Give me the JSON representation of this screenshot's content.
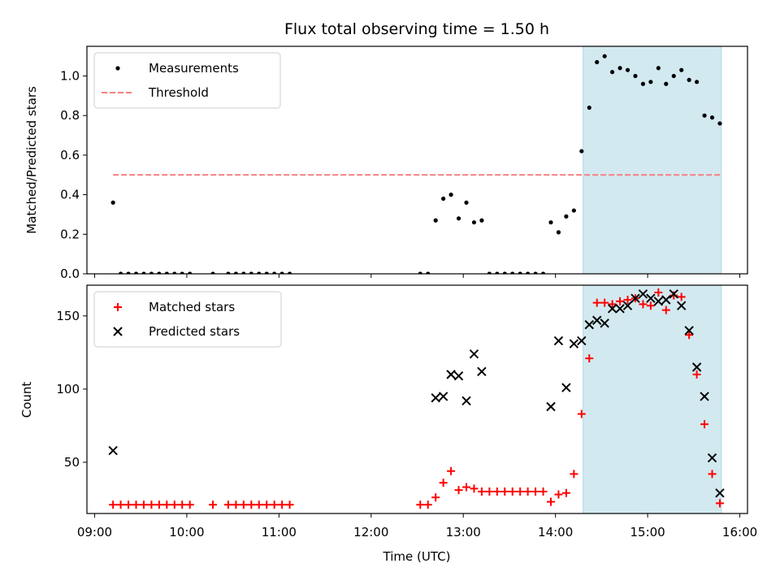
{
  "title": "Flux total observing time = 1.50 h",
  "chart_data": [
    {
      "type": "scatter",
      "ylabel": "Matched/Predicted stars",
      "ylim": [
        0,
        1.15
      ],
      "yticks": [
        0.0,
        0.2,
        0.4,
        0.6,
        0.8,
        1.0
      ],
      "ytick_labels": [
        "0.0",
        "0.2",
        "0.4",
        "0.6",
        "0.8",
        "1.0"
      ],
      "xlim": [
        "08:55",
        "16:05"
      ],
      "legend_position": "top-left",
      "shaded_span": {
        "start": "14:18",
        "end": "15:48",
        "color": "#d3e9f0"
      },
      "threshold": {
        "name": "Threshold",
        "value": 0.5,
        "start": "09:12",
        "end": "15:48",
        "color": "#f47f7f"
      },
      "series": [
        {
          "name": "Measurements",
          "color": "#000000",
          "points": [
            [
              "09:12",
              0.36
            ],
            [
              "09:17",
              0.0
            ],
            [
              "09:22",
              0.0
            ],
            [
              "09:27",
              0.0
            ],
            [
              "09:32",
              0.0
            ],
            [
              "09:37",
              0.0
            ],
            [
              "09:42",
              0.0
            ],
            [
              "09:47",
              0.0
            ],
            [
              "09:52",
              0.0
            ],
            [
              "09:57",
              0.0
            ],
            [
              "10:02",
              0.0
            ],
            [
              "10:17",
              0.0
            ],
            [
              "10:27",
              0.0
            ],
            [
              "10:32",
              0.0
            ],
            [
              "10:37",
              0.0
            ],
            [
              "10:42",
              0.0
            ],
            [
              "10:47",
              0.0
            ],
            [
              "10:52",
              0.0
            ],
            [
              "10:57",
              0.0
            ],
            [
              "11:02",
              0.0
            ],
            [
              "11:07",
              0.0
            ],
            [
              "12:32",
              0.0
            ],
            [
              "12:37",
              0.0
            ],
            [
              "12:42",
              0.27
            ],
            [
              "12:47",
              0.38
            ],
            [
              "12:52",
              0.4
            ],
            [
              "12:57",
              0.28
            ],
            [
              "13:02",
              0.36
            ],
            [
              "13:07",
              0.26
            ],
            [
              "13:12",
              0.27
            ],
            [
              "13:17",
              0.0
            ],
            [
              "13:22",
              0.0
            ],
            [
              "13:27",
              0.0
            ],
            [
              "13:32",
              0.0
            ],
            [
              "13:37",
              0.0
            ],
            [
              "13:42",
              0.0
            ],
            [
              "13:47",
              0.0
            ],
            [
              "13:52",
              0.0
            ],
            [
              "13:57",
              0.26
            ],
            [
              "14:02",
              0.21
            ],
            [
              "14:07",
              0.29
            ],
            [
              "14:12",
              0.32
            ],
            [
              "14:17",
              0.62
            ],
            [
              "14:22",
              0.84
            ],
            [
              "14:27",
              1.07
            ],
            [
              "14:32",
              1.1
            ],
            [
              "14:37",
              1.02
            ],
            [
              "14:42",
              1.04
            ],
            [
              "14:47",
              1.03
            ],
            [
              "14:52",
              1.0
            ],
            [
              "14:57",
              0.96
            ],
            [
              "15:02",
              0.97
            ],
            [
              "15:07",
              1.04
            ],
            [
              "15:12",
              0.96
            ],
            [
              "15:17",
              1.0
            ],
            [
              "15:22",
              1.03
            ],
            [
              "15:27",
              0.98
            ],
            [
              "15:32",
              0.97
            ],
            [
              "15:37",
              0.8
            ],
            [
              "15:42",
              0.79
            ],
            [
              "15:47",
              0.76
            ]
          ]
        }
      ]
    },
    {
      "type": "scatter",
      "xlabel": "Time (UTC)",
      "ylabel": "Count",
      "ylim": [
        15,
        171
      ],
      "yticks": [
        50,
        100,
        150
      ],
      "ytick_labels": [
        "50",
        "100",
        "150"
      ],
      "xlim": [
        "08:55",
        "16:05"
      ],
      "xticks": [
        "09:00",
        "10:00",
        "11:00",
        "12:00",
        "13:00",
        "14:00",
        "15:00",
        "16:00"
      ],
      "xtick_labels": [
        "09:00",
        "10:00",
        "11:00",
        "12:00",
        "13:00",
        "14:00",
        "15:00",
        "16:00"
      ],
      "legend_position": "top-left",
      "shaded_span": {
        "start": "14:18",
        "end": "15:48",
        "color": "#d3e9f0"
      },
      "series": [
        {
          "name": "Matched stars",
          "marker": "plus",
          "color": "#ff0000",
          "points": [
            [
              "09:12",
              21
            ],
            [
              "09:17",
              21
            ],
            [
              "09:22",
              21
            ],
            [
              "09:27",
              21
            ],
            [
              "09:32",
              21
            ],
            [
              "09:37",
              21
            ],
            [
              "09:42",
              21
            ],
            [
              "09:47",
              21
            ],
            [
              "09:52",
              21
            ],
            [
              "09:57",
              21
            ],
            [
              "10:02",
              21
            ],
            [
              "10:17",
              21
            ],
            [
              "10:27",
              21
            ],
            [
              "10:32",
              21
            ],
            [
              "10:37",
              21
            ],
            [
              "10:42",
              21
            ],
            [
              "10:47",
              21
            ],
            [
              "10:52",
              21
            ],
            [
              "10:57",
              21
            ],
            [
              "11:02",
              21
            ],
            [
              "11:07",
              21
            ],
            [
              "12:32",
              21
            ],
            [
              "12:37",
              21
            ],
            [
              "12:42",
              26
            ],
            [
              "12:47",
              36
            ],
            [
              "12:52",
              44
            ],
            [
              "12:57",
              31
            ],
            [
              "13:02",
              33
            ],
            [
              "13:07",
              32
            ],
            [
              "13:12",
              30
            ],
            [
              "13:17",
              30
            ],
            [
              "13:22",
              30
            ],
            [
              "13:27",
              30
            ],
            [
              "13:32",
              30
            ],
            [
              "13:37",
              30
            ],
            [
              "13:42",
              30
            ],
            [
              "13:47",
              30
            ],
            [
              "13:52",
              30
            ],
            [
              "13:57",
              23
            ],
            [
              "14:02",
              28
            ],
            [
              "14:07",
              29
            ],
            [
              "14:12",
              42
            ],
            [
              "14:17",
              83
            ],
            [
              "14:22",
              121
            ],
            [
              "14:27",
              159
            ],
            [
              "14:32",
              159
            ],
            [
              "14:37",
              158
            ],
            [
              "14:42",
              160
            ],
            [
              "14:47",
              161
            ],
            [
              "14:52",
              162
            ],
            [
              "14:57",
              158
            ],
            [
              "15:02",
              157
            ],
            [
              "15:07",
              166
            ],
            [
              "15:12",
              154
            ],
            [
              "15:17",
              164
            ],
            [
              "15:22",
              163
            ],
            [
              "15:27",
              137
            ],
            [
              "15:32",
              110
            ],
            [
              "15:37",
              76
            ],
            [
              "15:42",
              42
            ],
            [
              "15:47",
              22
            ]
          ]
        },
        {
          "name": "Predicted stars",
          "marker": "x",
          "color": "#000000",
          "points": [
            [
              "09:12",
              58
            ],
            [
              "12:42",
              94
            ],
            [
              "12:47",
              95
            ],
            [
              "12:52",
              110
            ],
            [
              "12:57",
              109
            ],
            [
              "13:02",
              92
            ],
            [
              "13:07",
              124
            ],
            [
              "13:12",
              112
            ],
            [
              "13:57",
              88
            ],
            [
              "14:02",
              133
            ],
            [
              "14:07",
              101
            ],
            [
              "14:12",
              131
            ],
            [
              "14:17",
              133
            ],
            [
              "14:22",
              144
            ],
            [
              "14:27",
              147
            ],
            [
              "14:32",
              145
            ],
            [
              "14:37",
              155
            ],
            [
              "14:42",
              155
            ],
            [
              "14:47",
              157
            ],
            [
              "14:52",
              162
            ],
            [
              "14:57",
              165
            ],
            [
              "15:02",
              162
            ],
            [
              "15:07",
              160
            ],
            [
              "15:12",
              161
            ],
            [
              "15:17",
              165
            ],
            [
              "15:22",
              157
            ],
            [
              "15:27",
              140
            ],
            [
              "15:32",
              115
            ],
            [
              "15:37",
              95
            ],
            [
              "15:42",
              53
            ],
            [
              "15:47",
              29
            ]
          ]
        }
      ]
    }
  ]
}
